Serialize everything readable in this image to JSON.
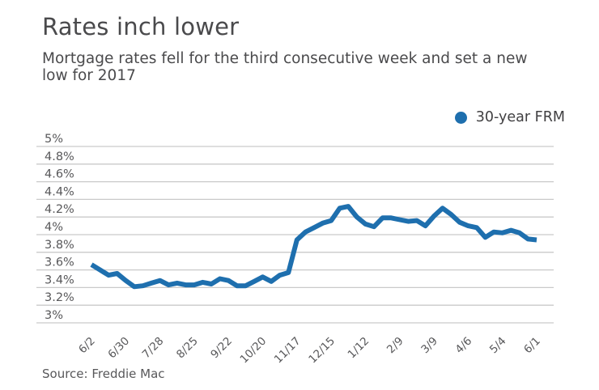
{
  "colors": {
    "line": "#1e6fae",
    "grid": "#c9c9c9",
    "title_text": "#4a4a4c",
    "axis_text": "#58585a"
  },
  "source": {
    "text": "Source: Freddie Mac"
  },
  "chart_data": {
    "type": "line",
    "title": "Rates inch lower",
    "subtitle": "Mortgage rates fell for the third consecutive week and set a new low for 2017",
    "xlabel": "",
    "ylabel": "",
    "ylim": [
      3,
      5
    ],
    "grid": "horizontal",
    "legend_position": "top-right",
    "y_ticks": [
      {
        "value": 5.0,
        "label": "5%"
      },
      {
        "value": 4.8,
        "label": "4.8%"
      },
      {
        "value": 4.6,
        "label": "4.6%"
      },
      {
        "value": 4.4,
        "label": "4.4%"
      },
      {
        "value": 4.2,
        "label": "4.2%"
      },
      {
        "value": 4.0,
        "label": "4%"
      },
      {
        "value": 3.8,
        "label": "3.8%"
      },
      {
        "value": 3.6,
        "label": "3.6%"
      },
      {
        "value": 3.4,
        "label": "3.4%"
      },
      {
        "value": 3.2,
        "label": "3.2%"
      },
      {
        "value": 3.0,
        "label": "3%"
      }
    ],
    "x": [
      "6/2",
      "6/9",
      "6/16",
      "6/23",
      "6/30",
      "7/7",
      "7/14",
      "7/21",
      "7/28",
      "8/4",
      "8/11",
      "8/18",
      "8/25",
      "9/1",
      "9/8",
      "9/15",
      "9/22",
      "9/29",
      "10/6",
      "10/13",
      "10/20",
      "10/27",
      "11/3",
      "11/10",
      "11/17",
      "11/23",
      "12/1",
      "12/8",
      "12/15",
      "12/22",
      "12/29",
      "1/5",
      "1/12",
      "1/19",
      "1/26",
      "2/2",
      "2/9",
      "2/16",
      "2/23",
      "3/2",
      "3/9",
      "3/16",
      "3/23",
      "3/30",
      "4/6",
      "4/13",
      "4/20",
      "4/27",
      "5/4",
      "5/11",
      "5/18",
      "5/25",
      "6/1"
    ],
    "x_tick_every": 4,
    "x_tick_labels": [
      "6/2",
      "6/30",
      "7/28",
      "8/25",
      "9/22",
      "10/20",
      "11/17",
      "12/15",
      "1/12",
      "2/9",
      "3/9",
      "4/6",
      "5/4",
      "6/1"
    ],
    "series": [
      {
        "name": "30-year FRM",
        "color": "#1e6fae",
        "values": [
          3.66,
          3.6,
          3.54,
          3.56,
          3.48,
          3.41,
          3.42,
          3.45,
          3.48,
          3.43,
          3.45,
          3.43,
          3.43,
          3.46,
          3.44,
          3.5,
          3.48,
          3.42,
          3.42,
          3.47,
          3.52,
          3.47,
          3.54,
          3.57,
          3.94,
          4.03,
          4.08,
          4.13,
          4.16,
          4.3,
          4.32,
          4.2,
          4.12,
          4.09,
          4.19,
          4.19,
          4.17,
          4.15,
          4.16,
          4.1,
          4.21,
          4.3,
          4.23,
          4.14,
          4.1,
          4.08,
          3.97,
          4.03,
          4.02,
          4.05,
          4.02,
          3.95,
          3.94
        ]
      }
    ]
  }
}
